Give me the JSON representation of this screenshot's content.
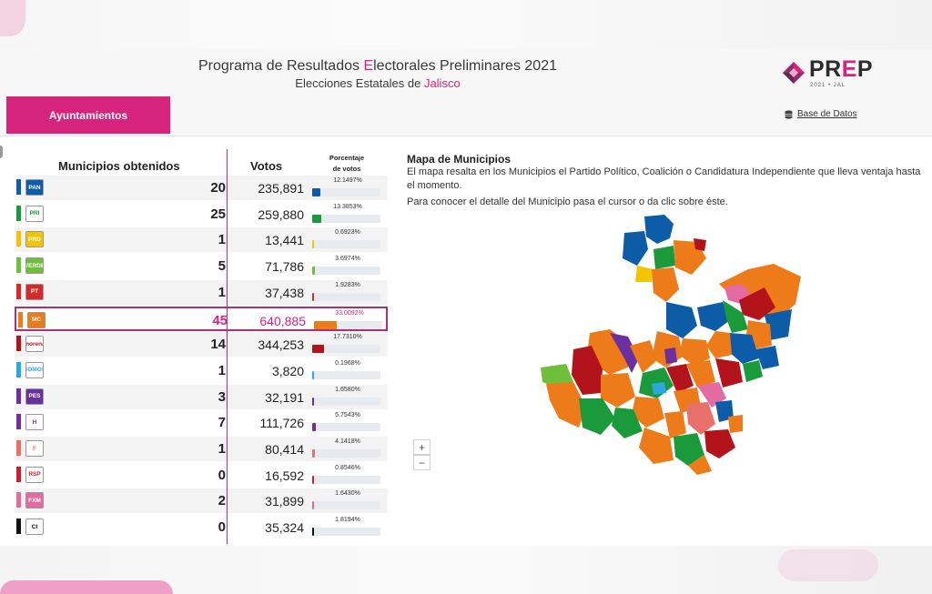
{
  "header": {
    "title_pre": "Programa de Resultados ",
    "title_hl": "E",
    "title_post": "lectorales Preliminares 2021",
    "subtitle_pre": "Elecciones Estatales de ",
    "subtitle_hl": "Jalisco",
    "logo_word_pre": "PR",
    "logo_word_e": "E",
    "logo_word_post": "P",
    "logo_year": "2021 • JAL",
    "tab_label": "Ayuntamientos",
    "db_label": "Base de Datos"
  },
  "table": {
    "col_municipios": "Municipios obtenidos",
    "col_votos": "Votos",
    "col_pct_line1": "Porcentaje",
    "col_pct_line2": "de votos",
    "rows": [
      {
        "party": "PAN",
        "color": "#0d5ca8",
        "count": "20",
        "votes": "235,891",
        "pct": "12.1497%",
        "pct_value": 12.1497,
        "logo_text": "PAN",
        "logo_bg": "#0d5ca8"
      },
      {
        "party": "PRI",
        "color": "#1a9a3a",
        "count": "25",
        "votes": "259,880",
        "pct": "13.3853%",
        "pct_value": 13.3853,
        "logo_text": "PRI",
        "logo_bg": "#ffffff"
      },
      {
        "party": "PRD",
        "color": "#f5c400",
        "count": "1",
        "votes": "13,441",
        "pct": "0.6923%",
        "pct_value": 0.6923,
        "logo_text": "PRD",
        "logo_bg": "#f5c400"
      },
      {
        "party": "VERDE",
        "color": "#6fbf3a",
        "count": "5",
        "votes": "71,786",
        "pct": "3.6974%",
        "pct_value": 3.6974,
        "logo_text": "VERDE",
        "logo_bg": "#6fbf3a"
      },
      {
        "party": "PT",
        "color": "#d62a2a",
        "count": "1",
        "votes": "37,438",
        "pct": "1.9283%",
        "pct_value": 1.9283,
        "logo_text": "PT",
        "logo_bg": "#d62a2a"
      },
      {
        "party": "MC",
        "color": "#ee7b1a",
        "count": "45",
        "votes": "640,885",
        "pct": "33.0092%",
        "pct_value": 33.0092,
        "logo_text": "MC",
        "logo_bg": "#ee7b1a",
        "selected": true
      },
      {
        "party": "MORENA",
        "color": "#b3131b",
        "count": "14",
        "votes": "344,253",
        "pct": "17.7310%",
        "pct_value": 17.731,
        "logo_text": "morena",
        "logo_bg": "#ffffff"
      },
      {
        "party": "SOMOS",
        "color": "#29a8df",
        "count": "1",
        "votes": "3,820",
        "pct": "0.1968%",
        "pct_value": 0.1968,
        "logo_text": "SOMOS",
        "logo_bg": "#ffffff"
      },
      {
        "party": "PES",
        "color": "#6b2fa0",
        "count": "3",
        "votes": "32,191",
        "pct": "1.6580%",
        "pct_value": 1.658,
        "logo_text": "PES",
        "logo_bg": "#6b2fa0"
      },
      {
        "party": "HAGAMOS",
        "color": "#7a2f8f",
        "count": "7",
        "votes": "111,726",
        "pct": "5.7543%",
        "pct_value": 5.7543,
        "logo_text": "H",
        "logo_bg": "#ffffff"
      },
      {
        "party": "FUTURO",
        "color": "#e8706a",
        "count": "1",
        "votes": "80,414",
        "pct": "4.1418%",
        "pct_value": 4.1418,
        "logo_text": "F",
        "logo_bg": "#ffffff"
      },
      {
        "party": "RSP",
        "color": "#c8202f",
        "count": "0",
        "votes": "16,592",
        "pct": "0.8546%",
        "pct_value": 0.8546,
        "logo_text": "RSP",
        "logo_bg": "#ffffff"
      },
      {
        "party": "FXM",
        "color": "#e46aa3",
        "count": "2",
        "votes": "31,899",
        "pct": "1.6430%",
        "pct_value": 1.643,
        "logo_text": "FXM",
        "logo_bg": "#e46aa3"
      },
      {
        "party": "CI",
        "color": "#111111",
        "count": "0",
        "votes": "35,324",
        "pct": "1.8194%",
        "pct_value": 1.8194,
        "logo_text": "CI",
        "logo_bg": "#ffffff"
      }
    ]
  },
  "map": {
    "title": "Mapa de Municipios",
    "desc1": "El mapa resalta en los Municipios el Partido Político, Coalición o Candidatura Independiente que lleva ventaja hasta el momento.",
    "desc2": "Para conocer el detalle del Municipio pasa el cursor o da clic sobre éste.",
    "zoom_in": "+",
    "zoom_out": "−"
  }
}
